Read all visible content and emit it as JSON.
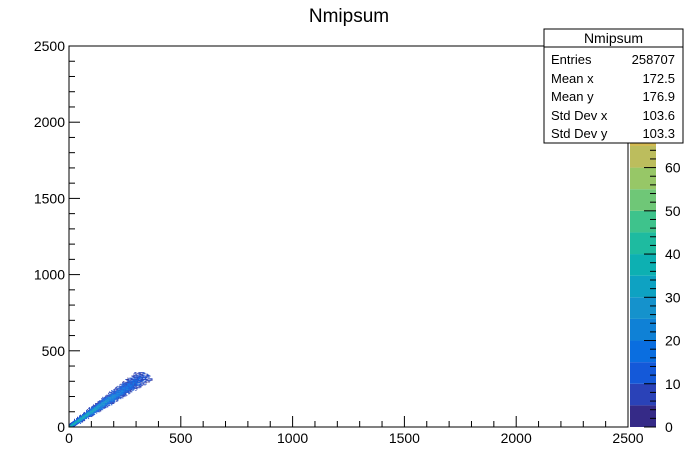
{
  "chart_data": {
    "type": "heatmap",
    "title": "Nmipsum",
    "xlabel": "",
    "ylabel": "",
    "xlim": [
      0,
      2500
    ],
    "ylim": [
      0,
      2500
    ],
    "x_ticks": [
      0,
      500,
      1000,
      1500,
      2000,
      2500
    ],
    "y_ticks": [
      0,
      500,
      1000,
      1500,
      2000,
      2500
    ],
    "color_scale": {
      "range": [
        0,
        68
      ],
      "ticks": [
        0,
        10,
        20,
        30,
        40,
        50,
        60
      ],
      "colors": [
        "#352a87",
        "#2a42b8",
        "#1459d9",
        "#0a6ee0",
        "#0f81d6",
        "#1592cc",
        "#0ea2c2",
        "#0db0b2",
        "#1ebba0",
        "#3ec38c",
        "#6fc777",
        "#97c767",
        "#bcbd5d",
        "#d3b94f"
      ]
    },
    "stats_box": {
      "title": "Nmipsum",
      "rows": [
        {
          "label": "Entries",
          "value": "258707"
        },
        {
          "label": "Mean x",
          "value": "172.5"
        },
        {
          "label": "Mean y",
          "value": "176.9"
        },
        {
          "label": "Std Dev x",
          "value": "103.6"
        },
        {
          "label": "Std Dev y",
          "value": "103.3"
        }
      ]
    },
    "distribution": {
      "description_values": "diagonal band along y = x",
      "x_extent": [
        0,
        370
      ],
      "y_extent": [
        0,
        360
      ],
      "mean_x": 172.5,
      "mean_y": 176.9,
      "std_x": 103.6,
      "std_y": 103.3
    }
  }
}
